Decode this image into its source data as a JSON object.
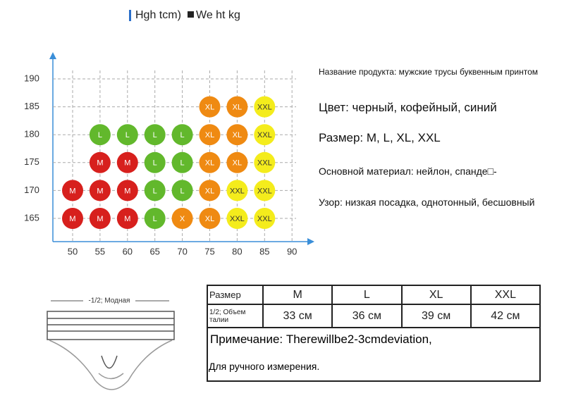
{
  "legend": {
    "height": "Hgh tcm)",
    "weight": "We ht kg"
  },
  "grid": {
    "yticks": [
      190,
      185,
      180,
      175,
      170,
      165
    ],
    "xticks": [
      50,
      55,
      60,
      65,
      70,
      75,
      80,
      85,
      90
    ],
    "colors": {
      "M": "#d7201d",
      "L": "#62b82c",
      "X": "#ef8a12",
      "XL": "#ef8a12",
      "XXL": "#f4ec1c"
    },
    "cells": [
      [
        null,
        null,
        null,
        null,
        null,
        null,
        null,
        null
      ],
      [
        null,
        null,
        null,
        null,
        null,
        "XL",
        "XL",
        "XXL"
      ],
      [
        null,
        "L",
        "L",
        "L",
        "L",
        "XL",
        "XL",
        "XXL"
      ],
      [
        null,
        "M",
        "M",
        "L",
        "L",
        "XL",
        "XL",
        "XXL"
      ],
      [
        "M",
        "M",
        "M",
        "L",
        "L",
        "XL",
        "XXL",
        "XXL"
      ],
      [
        "M",
        "M",
        "M",
        "L",
        "X",
        "XL",
        "XXL",
        "XXL"
      ]
    ]
  },
  "product": {
    "name": "Название продукта: мужские трусы буквенным принтом",
    "color": "Цвет: черный, кофейный, синий",
    "size": "Размер: M, L, XL, XXL",
    "material": "Основной материал: нейлон, спанде□-",
    "pattern": "Узор: низкая посадка, однотонный, бесшовный"
  },
  "drawing": {
    "label": "-1/2; Модная"
  },
  "table": {
    "rows": [
      [
        "Размер",
        "M",
        "L",
        "XL",
        "XXL"
      ],
      [
        "1/2; Объем талии",
        "33 см",
        "36 см",
        "39 см",
        "42 см"
      ]
    ],
    "note": "Примечание: Therewillbe2-3cmdeviation,",
    "note2": "Для ручного измерения."
  }
}
